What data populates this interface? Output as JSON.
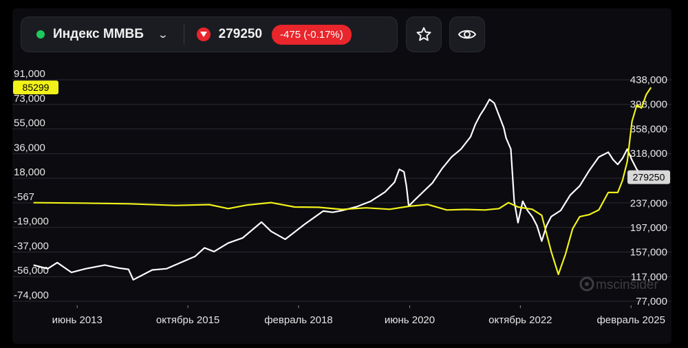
{
  "header": {
    "ticker_name": "Индекс ММВБ",
    "price": "279250",
    "change": "-475 (-0.17%)",
    "status_color": "#1ec95f",
    "down_color": "#e8262c"
  },
  "buttons": {
    "favorite_icon": "star-icon",
    "watch_icon": "eye-icon"
  },
  "watermark": "mscinsider",
  "chart_data": {
    "type": "line",
    "title": "",
    "x_ticks": [
      "июнь 2013",
      "октябрь 2015",
      "февраль 2018",
      "июнь 2020",
      "октябрь 2022",
      "февраль 2025"
    ],
    "x_tick_years": [
      2013.42,
      2015.75,
      2018.08,
      2020.42,
      2022.75,
      2025.08
    ],
    "xlim": [
      2012.2,
      2025.7
    ],
    "left_axis": {
      "ylim": [
        -74000,
        91000
      ],
      "ticks": [
        "91,000",
        "73,000",
        "55,000",
        "36,000",
        "18,000",
        "-567",
        "-19,000",
        "-37,000",
        "-56,000",
        "-74,000"
      ],
      "tick_values": [
        91000,
        73000,
        55000,
        36000,
        18000,
        -567,
        -19000,
        -37000,
        -56000,
        -74000
      ]
    },
    "right_axis": {
      "ylim": [
        77000,
        438000
      ],
      "ticks": [
        "438,000",
        "398,000",
        "358,000",
        "318,000",
        "237,000",
        "197,000",
        "157,000",
        "117,000",
        "77,000"
      ],
      "tick_values": [
        438000,
        398000,
        358000,
        318000,
        237000,
        197000,
        157000,
        117000,
        77000
      ]
    },
    "series": [
      {
        "color": "#ffffff",
        "axis": "right",
        "last_label": "279250",
        "points": [
          [
            2012.5,
            136000
          ],
          [
            2012.8,
            130000
          ],
          [
            2013.0,
            140000
          ],
          [
            2013.3,
            124000
          ],
          [
            2013.6,
            130000
          ],
          [
            2014.0,
            136000
          ],
          [
            2014.3,
            131000
          ],
          [
            2014.5,
            129000
          ],
          [
            2014.6,
            112000
          ],
          [
            2014.8,
            120000
          ],
          [
            2015.0,
            128000
          ],
          [
            2015.3,
            130000
          ],
          [
            2015.6,
            140000
          ],
          [
            2015.9,
            150000
          ],
          [
            2016.1,
            164000
          ],
          [
            2016.3,
            158000
          ],
          [
            2016.6,
            172000
          ],
          [
            2016.9,
            180000
          ],
          [
            2017.1,
            193000
          ],
          [
            2017.3,
            206000
          ],
          [
            2017.5,
            191000
          ],
          [
            2017.8,
            178000
          ],
          [
            2018.0,
            190000
          ],
          [
            2018.2,
            202000
          ],
          [
            2018.4,
            213000
          ],
          [
            2018.6,
            224000
          ],
          [
            2018.8,
            222000
          ],
          [
            2019.0,
            225000
          ],
          [
            2019.3,
            231000
          ],
          [
            2019.6,
            240000
          ],
          [
            2019.9,
            255000
          ],
          [
            2020.1,
            271000
          ],
          [
            2020.2,
            292000
          ],
          [
            2020.3,
            288000
          ],
          [
            2020.35,
            265000
          ],
          [
            2020.4,
            232000
          ],
          [
            2020.5,
            240000
          ],
          [
            2020.7,
            255000
          ],
          [
            2020.9,
            270000
          ],
          [
            2021.1,
            293000
          ],
          [
            2021.3,
            312000
          ],
          [
            2021.5,
            325000
          ],
          [
            2021.7,
            345000
          ],
          [
            2021.8,
            365000
          ],
          [
            2021.9,
            380000
          ],
          [
            2022.0,
            392000
          ],
          [
            2022.1,
            406000
          ],
          [
            2022.2,
            400000
          ],
          [
            2022.3,
            380000
          ],
          [
            2022.4,
            360000
          ],
          [
            2022.45,
            343000
          ],
          [
            2022.55,
            325000
          ],
          [
            2022.62,
            240000
          ],
          [
            2022.7,
            205000
          ],
          [
            2022.8,
            240000
          ],
          [
            2022.9,
            225000
          ],
          [
            2023.0,
            215000
          ],
          [
            2023.1,
            200000
          ],
          [
            2023.2,
            175000
          ],
          [
            2023.3,
            200000
          ],
          [
            2023.4,
            215000
          ],
          [
            2023.6,
            225000
          ],
          [
            2023.8,
            250000
          ],
          [
            2024.0,
            265000
          ],
          [
            2024.2,
            290000
          ],
          [
            2024.4,
            312000
          ],
          [
            2024.6,
            320000
          ],
          [
            2024.7,
            308000
          ],
          [
            2024.8,
            300000
          ],
          [
            2024.9,
            310000
          ],
          [
            2025.0,
            325000
          ],
          [
            2025.1,
            307000
          ],
          [
            2025.2,
            292000
          ],
          [
            2025.3,
            283000
          ],
          [
            2025.4,
            276000
          ],
          [
            2025.5,
            279250
          ]
        ]
      },
      {
        "color": "#f2f21a",
        "axis": "left",
        "last_label": "85299",
        "points": [
          [
            2012.5,
            -567
          ],
          [
            2013.5,
            -900
          ],
          [
            2014.5,
            -1400
          ],
          [
            2015.5,
            -2600
          ],
          [
            2016.2,
            -2000
          ],
          [
            2016.6,
            -5000
          ],
          [
            2017.0,
            -2300
          ],
          [
            2017.5,
            -500
          ],
          [
            2018.0,
            -3800
          ],
          [
            2018.5,
            -4000
          ],
          [
            2019.0,
            -5600
          ],
          [
            2019.5,
            -4400
          ],
          [
            2020.0,
            -5500
          ],
          [
            2020.4,
            -3300
          ],
          [
            2020.8,
            -1900
          ],
          [
            2021.2,
            -6000
          ],
          [
            2021.6,
            -5600
          ],
          [
            2022.0,
            -6000
          ],
          [
            2022.3,
            -5000
          ],
          [
            2022.5,
            -500
          ],
          [
            2022.7,
            -3800
          ],
          [
            2023.0,
            -5500
          ],
          [
            2023.2,
            -10000
          ],
          [
            2023.4,
            -37000
          ],
          [
            2023.55,
            -54000
          ],
          [
            2023.7,
            -39000
          ],
          [
            2023.85,
            -20000
          ],
          [
            2024.0,
            -11000
          ],
          [
            2024.2,
            -9500
          ],
          [
            2024.4,
            -6000
          ],
          [
            2024.6,
            7000
          ],
          [
            2024.8,
            7000
          ],
          [
            2024.9,
            16000
          ],
          [
            2025.0,
            30000
          ],
          [
            2025.1,
            60000
          ],
          [
            2025.2,
            72000
          ],
          [
            2025.3,
            70000
          ],
          [
            2025.4,
            80000
          ],
          [
            2025.5,
            85299
          ]
        ]
      }
    ]
  }
}
